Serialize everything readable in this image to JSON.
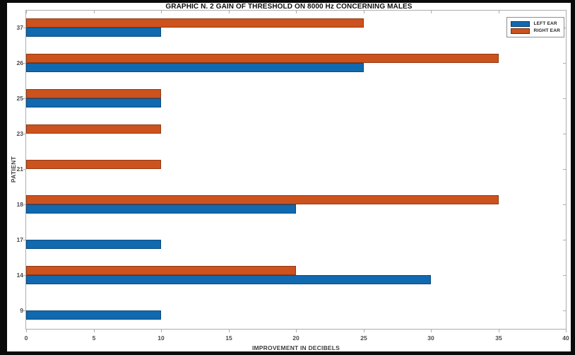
{
  "chart_data": {
    "type": "bar",
    "orientation": "horizontal",
    "title": "GRAPHIC N. 2 GAIN OF THRESHOLD ON 8000 Hz CONCERNING MALES",
    "xlabel": "IMPROVEMENT IN DECIBELS",
    "ylabel": "PATIENT",
    "categories": [
      "9",
      "14",
      "17",
      "18",
      "21",
      "23",
      "25",
      "26",
      "37"
    ],
    "series": [
      {
        "name": "LEFT EAR",
        "color": "#1169b0",
        "values": [
          10,
          30,
          10,
          20,
          0,
          0,
          10,
          25,
          10
        ]
      },
      {
        "name": "RIGHT EAR",
        "color": "#cc521e",
        "values": [
          0,
          20,
          0,
          35,
          10,
          10,
          10,
          35,
          25
        ]
      }
    ],
    "xlim": [
      0,
      40
    ],
    "xticks": [
      0,
      5,
      10,
      15,
      20,
      25,
      30,
      35,
      40
    ],
    "grid": false,
    "legend_position": "top-right",
    "axis_color": "#adadad",
    "tick_label_color": "#4a4a4a"
  }
}
